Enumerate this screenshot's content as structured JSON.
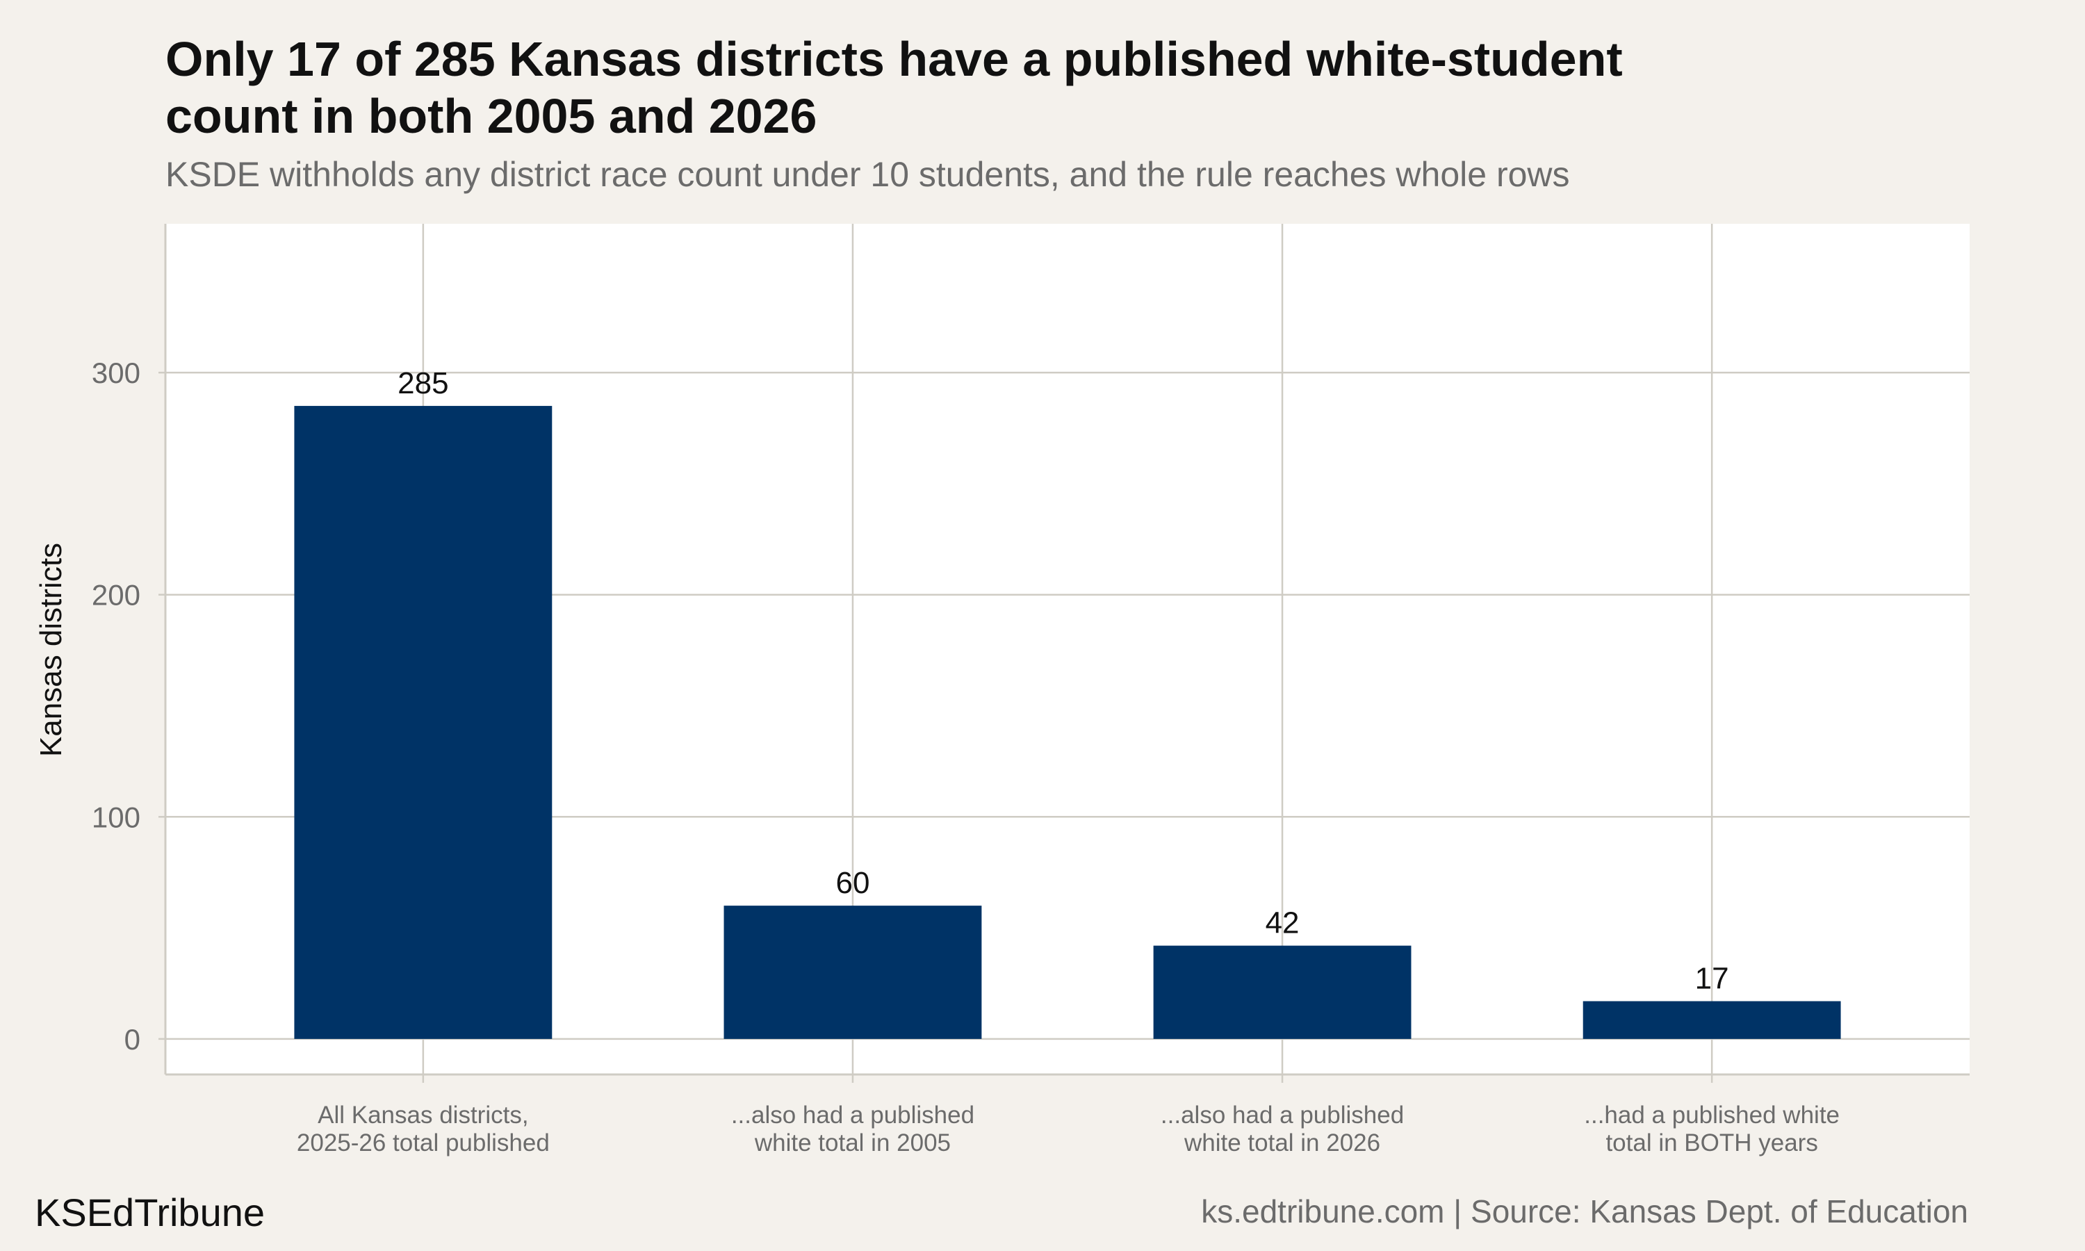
{
  "chart_data": {
    "type": "bar",
    "title_lines": [
      "Only 17 of 285 Kansas districts have a published white-student",
      "count in both 2005 and 2026"
    ],
    "subtitle": "KSDE withholds any district race count under 10 students, and the rule reaches whole rows",
    "categories": [
      [
        "All Kansas districts,",
        "2025-26 total published"
      ],
      [
        "...also had a published",
        "white total in 2005"
      ],
      [
        "...also had a published",
        "white total in 2026"
      ],
      [
        "...had a published white",
        "total in BOTH years"
      ]
    ],
    "values": [
      285,
      60,
      42,
      17
    ],
    "data_labels": [
      "285",
      "60",
      "42",
      "17"
    ],
    "ylabel": "Kansas districts",
    "xlabel": "",
    "yticks": [
      0,
      100,
      200,
      300
    ],
    "ylim": [
      -16,
      367
    ],
    "grid": true,
    "bar_color": "#003366",
    "legend": "none"
  },
  "footer": {
    "brand": "KSEdTribune",
    "source": "ks.edtribune.com | Source: Kansas Dept. of Education"
  },
  "colors": {
    "background": "#f4f1ec",
    "panel": "#ffffff",
    "grid": "#cfccc4",
    "bar": "#003366",
    "muted_text": "#6b6b6b"
  }
}
